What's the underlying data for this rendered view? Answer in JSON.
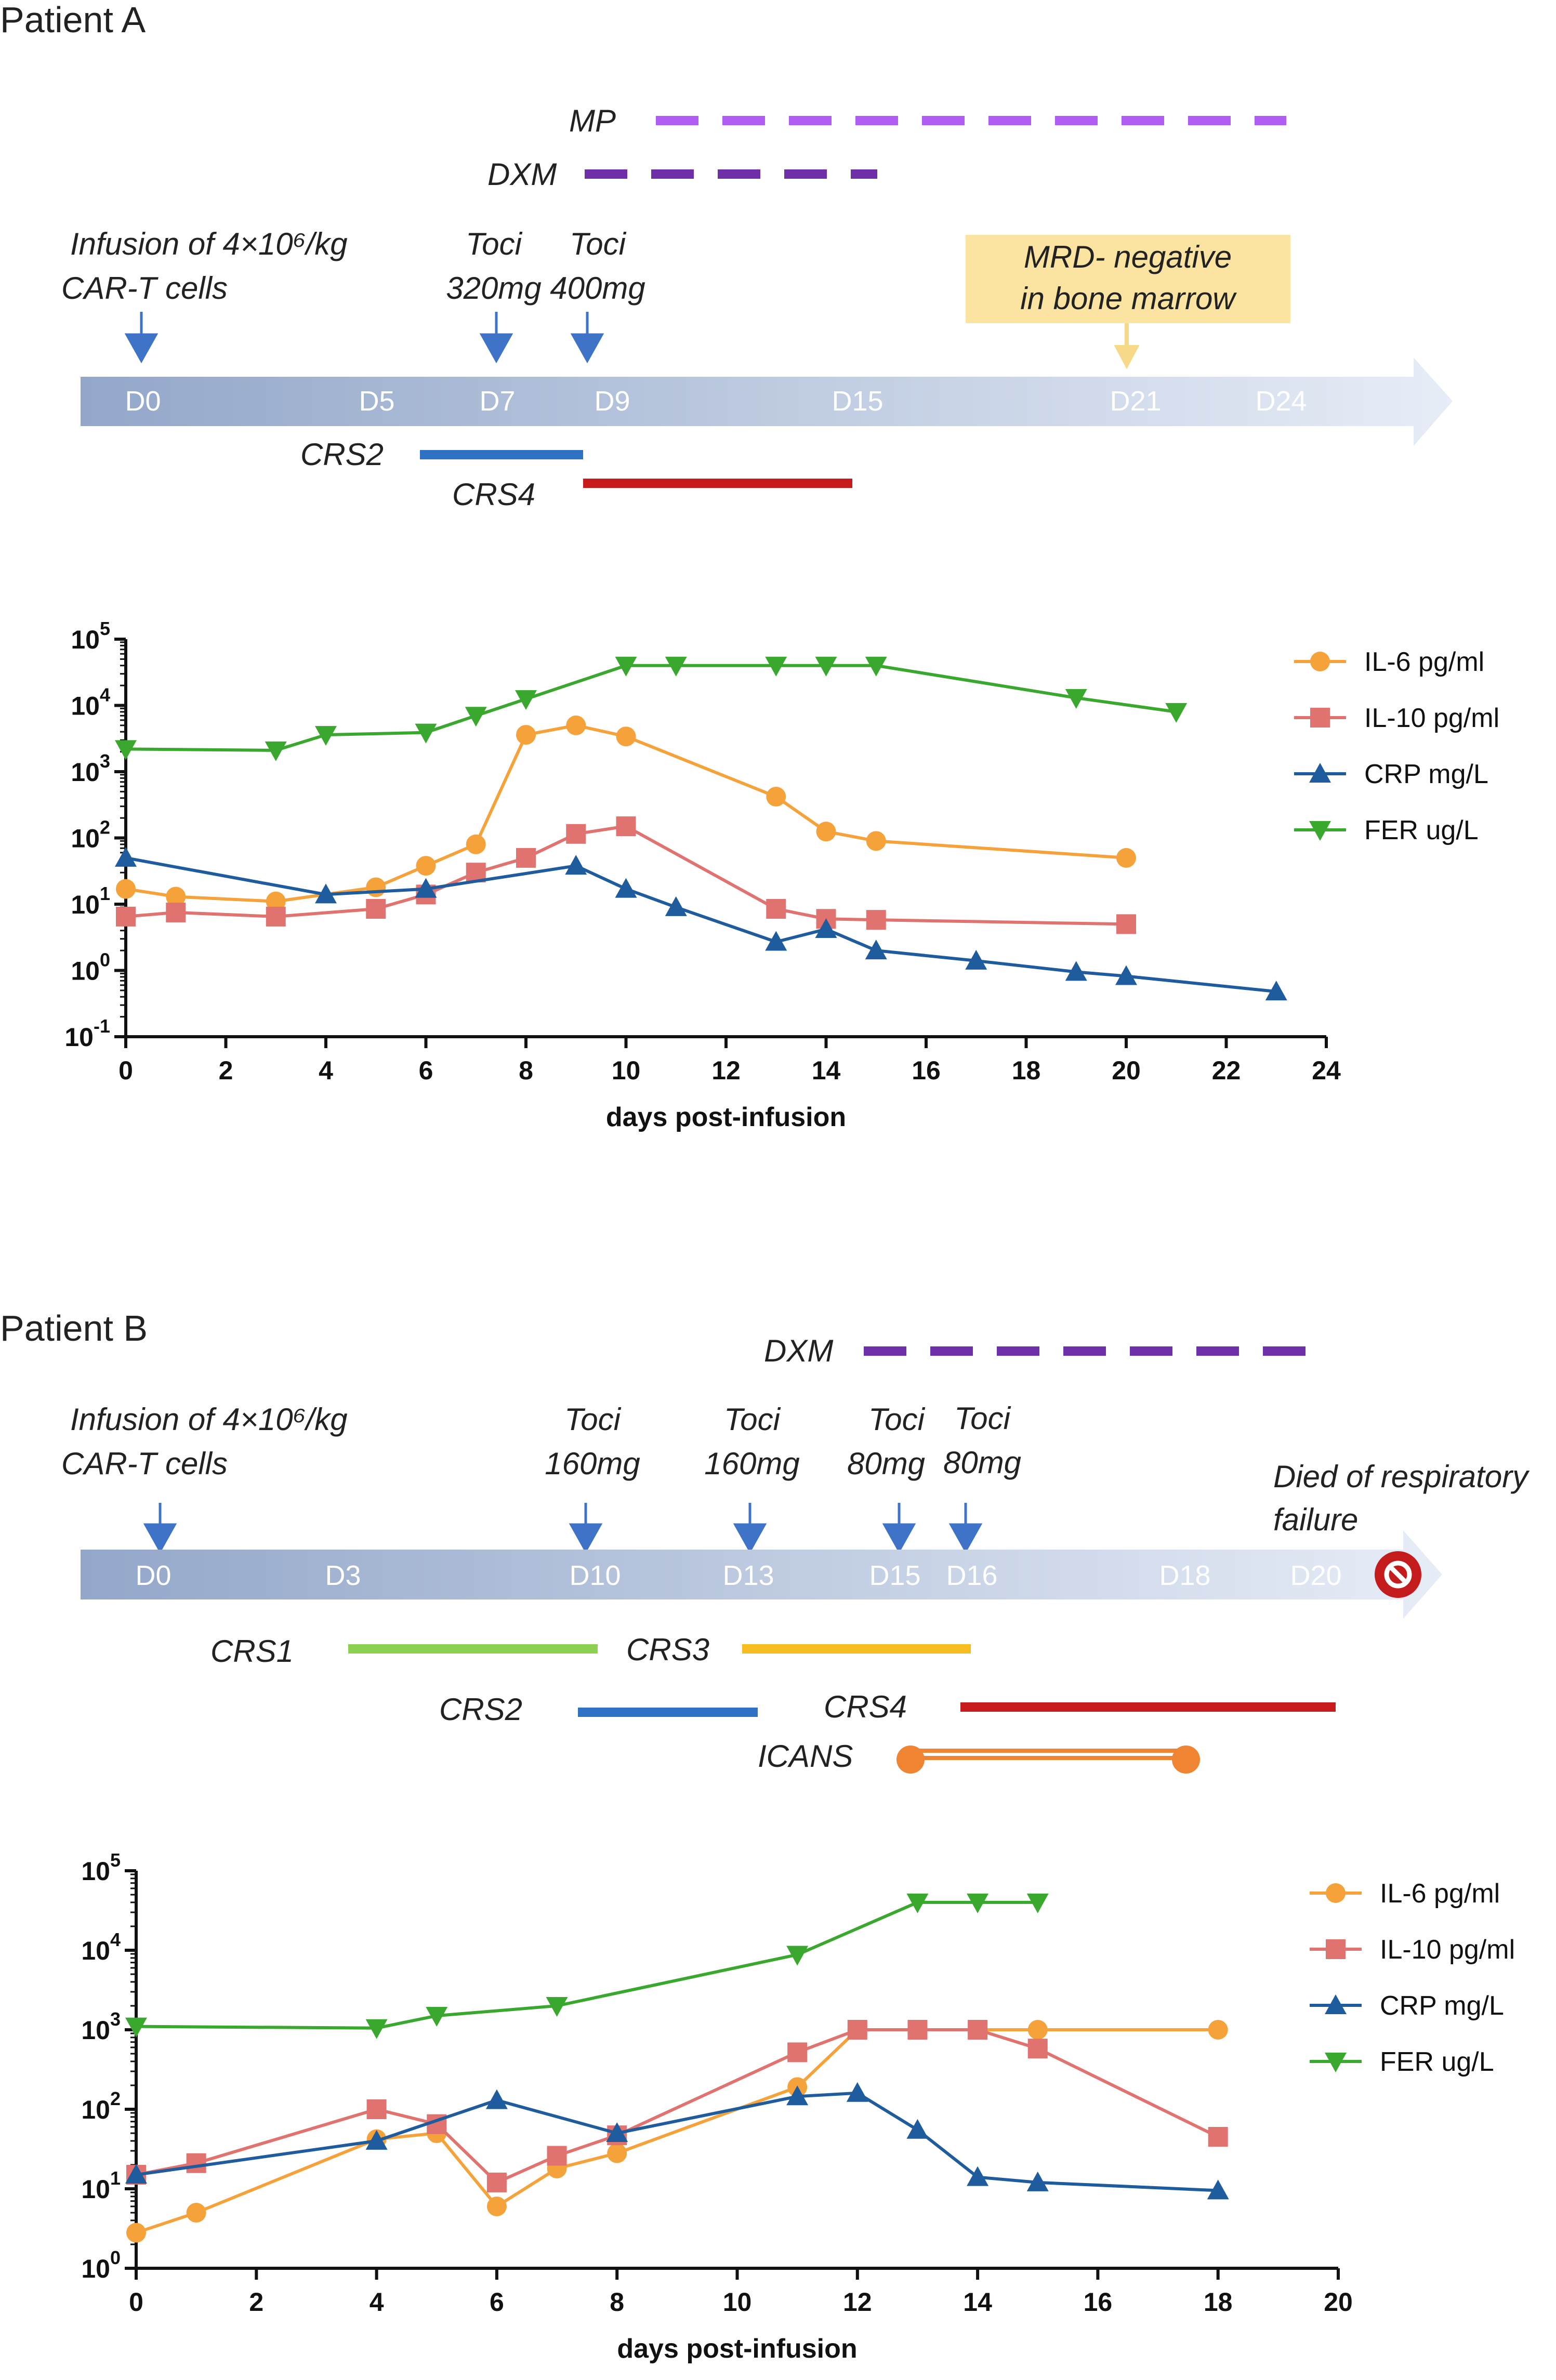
{
  "colors": {
    "il6": "#f5a23a",
    "il10": "#e0736f",
    "crp": "#1f5c9e",
    "fer": "#3aa82f",
    "arrow": "#3e73c8",
    "mp": "#b15cf2",
    "dxm": "#6f2fa8",
    "crs1": "#8dd052",
    "crs2": "#2f72c4",
    "crs3": "#f5bd1f",
    "crs4": "#c81c1c",
    "icans": "#ef8432",
    "mrd_box": "#fbe4a1",
    "death": "#c41c1c"
  },
  "panelA": {
    "title": "Patient A",
    "timeline": {
      "day_labels": [
        "D0",
        "D5",
        "D7",
        "D9",
        "D15",
        "D21",
        "D24"
      ],
      "infusion": {
        "line1": "Infusion of  4×10⁶/kg",
        "line2": "CAR-T cells"
      },
      "toci": [
        {
          "line1": "Toci",
          "line2": "320mg"
        },
        {
          "line1": "Toci",
          "line2": "400mg"
        }
      ],
      "mrd": {
        "line1": "MRD- negative",
        "line2": "in bone marrow"
      },
      "drugs": {
        "mp": "MP",
        "dxm": "DXM"
      },
      "crs": {
        "crs2": "CRS2",
        "crs4": "CRS4"
      }
    }
  },
  "panelB": {
    "title": "Patient B",
    "timeline": {
      "day_labels": [
        "D0",
        "D3",
        "D10",
        "D13",
        "D15",
        "D16",
        "D18",
        "D20"
      ],
      "infusion": {
        "line1": "Infusion of  4×10⁶/kg",
        "line2": "CAR-T cells"
      },
      "toci": [
        {
          "line1": "Toci",
          "line2": "160mg"
        },
        {
          "line1": "Toci",
          "line2": "160mg"
        },
        {
          "line1": "Toci",
          "line2": "80mg"
        },
        {
          "line1": "Toci",
          "line2": "80mg"
        }
      ],
      "death": {
        "line1": "Died of respiratory",
        "line2": "failure"
      },
      "drugs": {
        "dxm": "DXM"
      },
      "crs": {
        "crs1": "CRS1",
        "crs2": "CRS2",
        "crs3": "CRS3",
        "crs4": "CRS4",
        "icans": "ICANS"
      }
    }
  },
  "chart_data": [
    {
      "type": "line",
      "title": "Patient A",
      "xlabel": "days post-infusion",
      "ylabel": "",
      "yscale": "log",
      "xlim": [
        0,
        24
      ],
      "ylim": [
        0.1,
        100000
      ],
      "x_ticks": [
        "0",
        "2",
        "4",
        "6",
        "8",
        "10",
        "12",
        "14",
        "16",
        "18",
        "20",
        "22",
        "24"
      ],
      "y_ticks": [
        {
          "base": "10",
          "exp": "-1"
        },
        {
          "base": "10",
          "exp": "0"
        },
        {
          "base": "10",
          "exp": "1"
        },
        {
          "base": "10",
          "exp": "2"
        },
        {
          "base": "10",
          "exp": "3"
        },
        {
          "base": "10",
          "exp": "4"
        },
        {
          "base": "10",
          "exp": "5"
        }
      ],
      "legend_position": "top-right",
      "series": [
        {
          "name": "IL-6 pg/ml",
          "marker": "circle",
          "color": "#f5a23a",
          "x": [
            0,
            1,
            3,
            5,
            6,
            7,
            8,
            9,
            10,
            13,
            14,
            15,
            20
          ],
          "y": [
            17,
            13,
            11,
            18,
            38,
            80,
            3600,
            5000,
            3400,
            420,
            125,
            90,
            50
          ]
        },
        {
          "name": "IL-10 pg/ml",
          "marker": "square",
          "color": "#e0736f",
          "x": [
            0,
            1,
            3,
            5,
            6,
            7,
            8,
            9,
            10,
            13,
            14,
            15,
            20
          ],
          "y": [
            6.5,
            7.5,
            6.5,
            8.5,
            14,
            30,
            50,
            115,
            150,
            8.5,
            6,
            5.8,
            5
          ]
        },
        {
          "name": "CRP mg/L",
          "marker": "triangle-up",
          "color": "#1f5c9e",
          "x": [
            0,
            4,
            6,
            9,
            10,
            11,
            13,
            14,
            15,
            17,
            19,
            20,
            23
          ],
          "y": [
            50,
            14,
            17,
            38,
            17,
            9,
            2.7,
            4.2,
            2,
            1.4,
            0.95,
            0.82,
            0.48
          ]
        },
        {
          "name": "FER ug/L",
          "marker": "triangle-down",
          "color": "#3aa82f",
          "x": [
            0,
            3,
            4,
            6,
            7,
            8,
            10,
            11,
            13,
            14,
            15,
            19,
            21
          ],
          "y": [
            2200,
            2100,
            3600,
            3900,
            7000,
            12500,
            40000,
            40000,
            40000,
            40000,
            40000,
            13000,
            8000
          ]
        }
      ]
    },
    {
      "type": "line",
      "title": "Patient B",
      "xlabel": "days post-infusion",
      "ylabel": "",
      "yscale": "log",
      "xlim": [
        0,
        20
      ],
      "ylim": [
        1,
        100000
      ],
      "x_ticks": [
        "0",
        "2",
        "4",
        "6",
        "8",
        "10",
        "12",
        "14",
        "16",
        "18",
        "20"
      ],
      "y_ticks": [
        {
          "base": "10",
          "exp": "0"
        },
        {
          "base": "10",
          "exp": "1"
        },
        {
          "base": "10",
          "exp": "2"
        },
        {
          "base": "10",
          "exp": "3"
        },
        {
          "base": "10",
          "exp": "4"
        },
        {
          "base": "10",
          "exp": "5"
        }
      ],
      "legend_position": "top-right",
      "series": [
        {
          "name": "IL-6 pg/ml",
          "marker": "circle",
          "color": "#f5a23a",
          "x": [
            0,
            1,
            4,
            5,
            6,
            7,
            8,
            11,
            12,
            13,
            14,
            15,
            18
          ],
          "y": [
            2.8,
            5,
            42,
            50,
            6,
            18,
            28,
            190,
            1000,
            1000,
            1000,
            1000,
            1000
          ]
        },
        {
          "name": "IL-10 pg/ml",
          "marker": "square",
          "color": "#e0736f",
          "x": [
            0,
            1,
            4,
            5,
            6,
            7,
            8,
            11,
            12,
            13,
            14,
            15,
            18
          ],
          "y": [
            15,
            21,
            100,
            65,
            12,
            26,
            47,
            520,
            1000,
            1000,
            1000,
            580,
            45
          ]
        },
        {
          "name": "CRP mg/L",
          "marker": "triangle-up",
          "color": "#1f5c9e",
          "x": [
            0,
            4,
            6,
            8,
            11,
            12,
            13,
            14,
            15,
            18
          ],
          "y": [
            15,
            40,
            130,
            50,
            145,
            160,
            55,
            14,
            12,
            9.5
          ]
        },
        {
          "name": "FER ug/L",
          "marker": "triangle-down",
          "color": "#3aa82f",
          "x": [
            0,
            4,
            5,
            7,
            11,
            13,
            14,
            15
          ],
          "y": [
            1100,
            1050,
            1500,
            2000,
            8800,
            40000,
            40000,
            40000
          ]
        }
      ]
    }
  ]
}
